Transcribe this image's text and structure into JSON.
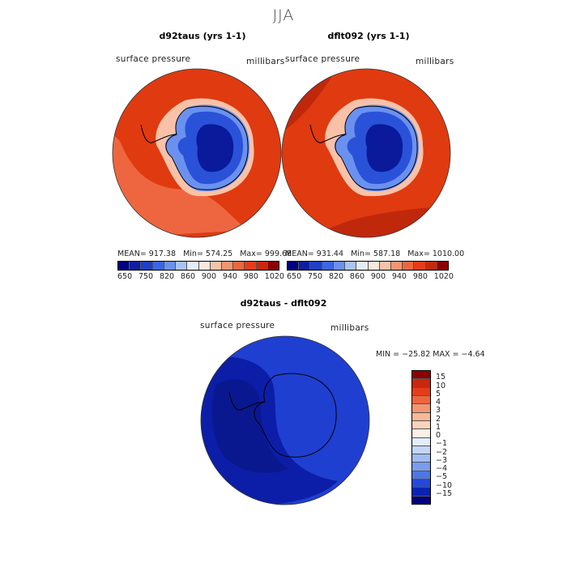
{
  "title": "JJA",
  "panels": [
    {
      "title": "d92taus (yrs 1-1)",
      "variable": "surface pressure",
      "units": "millibars",
      "stats": {
        "mean": "MEAN= 917.38",
        "min": "Min= 574.25",
        "max": "Max= 999.68"
      }
    },
    {
      "title": "dflt092 (yrs 1-1)",
      "variable": "surface pressure",
      "units": "millibars",
      "stats": {
        "mean": "MEAN= 931.44",
        "min": "Min= 587.18",
        "max": "Max= 1010.00"
      }
    }
  ],
  "colorbar_top": {
    "colors": [
      "#000080",
      "#0d1fa0",
      "#1f3fc8",
      "#3b66e6",
      "#6b91f0",
      "#a9c3f5",
      "#e3ecfb",
      "#fde6dc",
      "#f9c2a8",
      "#f5946e",
      "#ee6640",
      "#e43d1c",
      "#c8280c",
      "#8b0000"
    ],
    "tick_labels": [
      "650",
      "750",
      "820",
      "860",
      "900",
      "940",
      "980",
      "1020"
    ]
  },
  "diff_panel": {
    "title": "d92taus - dflt092",
    "variable": "surface pressure",
    "units": "millibars",
    "stats": "MIN = −25.82 MAX =  −4.64"
  },
  "colorbar_diff": {
    "colors": [
      "#8b0000",
      "#c8280c",
      "#e43d1c",
      "#ee6640",
      "#f5946e",
      "#f9b896",
      "#fbd3bd",
      "#fdeee6",
      "#e3ecfb",
      "#c4d6f8",
      "#a0bcf3",
      "#7a9cee",
      "#4e76e6",
      "#2648d6",
      "#0c22b0",
      "#000080"
    ],
    "labels": [
      "15",
      "10",
      "5",
      "4",
      "3",
      "2",
      "1",
      "0",
      "−1",
      "−2",
      "−3",
      "−4",
      "−5",
      "−10",
      "−15"
    ]
  },
  "map_colors": {
    "ocean_high": "#e03a10",
    "ocean_mid": "#ee6640",
    "ocean_dark": "#c0280c",
    "coast_light": "#f9c2a8",
    "land_light": "#6b91f0",
    "land_mid": "#2a52d8",
    "land_dark": "#0a1a9a",
    "diff_ocean": "#1f3fd0",
    "diff_dark": "#0c1ea8",
    "diff_darker": "#0a1890"
  }
}
